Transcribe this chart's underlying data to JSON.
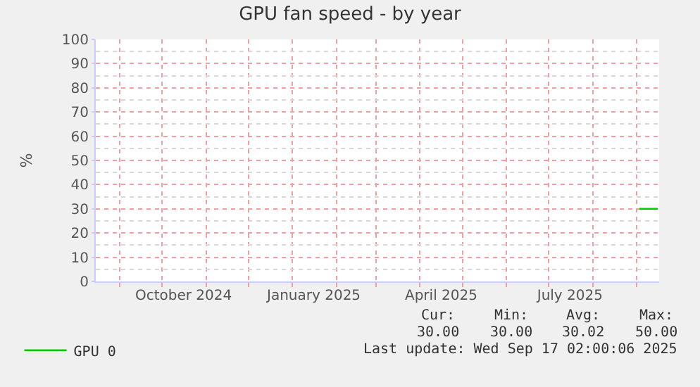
{
  "chart_data": {
    "type": "line",
    "title": "GPU fan speed - by year",
    "ylabel": "%",
    "x": [
      "2025-09-03",
      "2025-09-16"
    ],
    "series": [
      {
        "name": "GPU 0",
        "color": "#00cc00",
        "values": [
          30,
          30
        ]
      }
    ],
    "xlim": [
      "2024-08-15",
      "2025-09-17"
    ],
    "xticks": [
      {
        "value": "2024-09-01",
        "label": null
      },
      {
        "value": "2024-10-01",
        "label": null
      },
      {
        "value": "2024-10-16",
        "label": "October 2024"
      },
      {
        "value": "2024-11-01",
        "label": null
      },
      {
        "value": "2024-12-01",
        "label": null
      },
      {
        "value": "2025-01-01",
        "label": null
      },
      {
        "value": "2025-01-16",
        "label": "January 2025"
      },
      {
        "value": "2025-02-01",
        "label": null
      },
      {
        "value": "2025-03-01",
        "label": null
      },
      {
        "value": "2025-04-01",
        "label": null
      },
      {
        "value": "2025-04-16",
        "label": "April 2025"
      },
      {
        "value": "2025-05-01",
        "label": null
      },
      {
        "value": "2025-06-01",
        "label": null
      },
      {
        "value": "2025-07-01",
        "label": null
      },
      {
        "value": "2025-07-16",
        "label": "July 2025"
      },
      {
        "value": "2025-08-01",
        "label": null
      },
      {
        "value": "2025-09-01",
        "label": null
      }
    ],
    "ylim": [
      0,
      100
    ],
    "yticks": [
      0,
      10,
      20,
      30,
      40,
      50,
      60,
      70,
      80,
      90,
      100
    ],
    "grid": true,
    "legend": "bottom",
    "line_style": "solid",
    "marker": "none",
    "annotations": [
      "Cur:",
      "Min:",
      "Avg:",
      "Max:",
      "30.00",
      "30.00",
      "30.02",
      "50.00",
      "Last update: Wed Sep 17 02:00:06 2025"
    ]
  }
}
